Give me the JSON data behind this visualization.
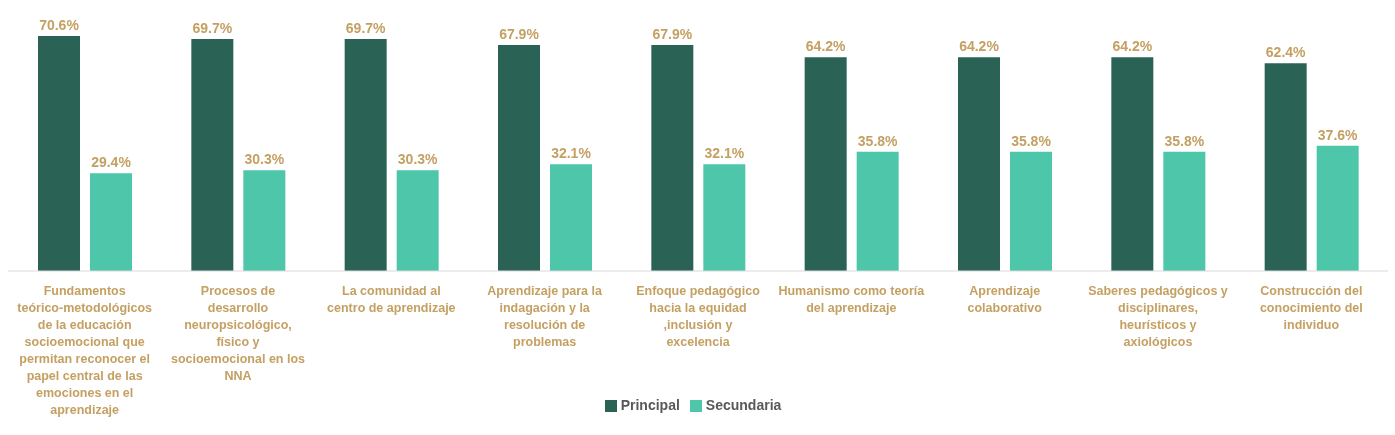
{
  "chart_data": {
    "type": "bar",
    "categories": [
      "Fundamentos teórico-metodológicos de la educación socioemocional que permitan reconocer el papel central de las emociones en el aprendizaje",
      "Procesos de desarrollo neuropsicológico, físico y socioemocional en los NNA",
      "La comunidad al centro de aprendizaje",
      "Aprendizaje para la indagación y la resolución de problemas",
      "Enfoque pedagógico hacia la equidad ,inclusión y excelencia",
      "Humanismo como teoría del aprendizaje",
      "Aprendizaje colaborativo",
      "Saberes pedagógicos y disciplinares, heurísticos y axiológicos",
      "Construcción del conocimiento del individuo"
    ],
    "series": [
      {
        "name": "Principal",
        "color": "#2a6355",
        "values": [
          70.6,
          69.7,
          69.7,
          67.9,
          67.9,
          64.2,
          64.2,
          64.2,
          62.4
        ],
        "value_labels": [
          "70.6%",
          "69.7%",
          "69.7%",
          "67.9%",
          "67.9%",
          "64.2%",
          "64.2%",
          "64.2%",
          "62.4%"
        ]
      },
      {
        "name": "Secundaria",
        "color": "#4dc6aa",
        "values": [
          29.4,
          30.3,
          30.3,
          32.1,
          32.1,
          35.8,
          35.8,
          35.8,
          37.6
        ],
        "value_labels": [
          "29.4%",
          "30.3%",
          "30.3%",
          "32.1%",
          "32.1%",
          "35.8%",
          "35.8%",
          "35.8%",
          "37.6%"
        ]
      }
    ],
    "legend": "bottom",
    "grid": false
  }
}
